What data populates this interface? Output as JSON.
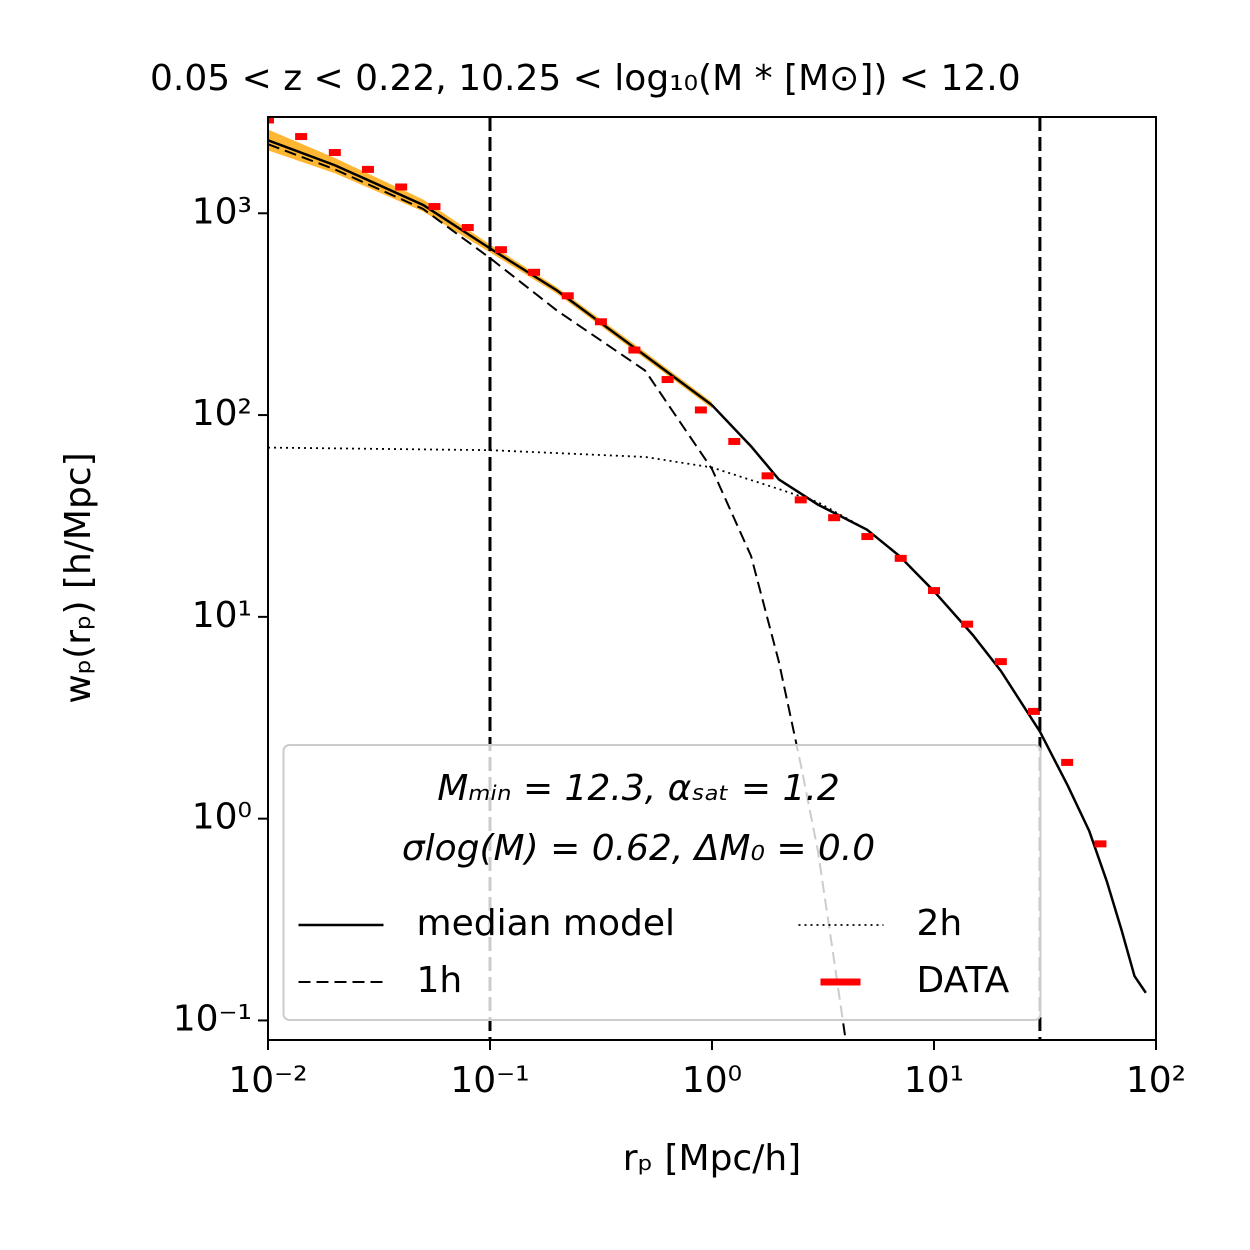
{
  "chart_data": {
    "type": "line",
    "title": "0.05 < z < 0.22, 10.25 < log₁₀(M * [M⊙]) < 12.0",
    "x_label": "rₚ [Mpc/h]",
    "y_label": "wₚ(rₚ) [h/Mpc]",
    "xscale": "log",
    "yscale": "log",
    "xlim": [
      0.01,
      100
    ],
    "ylim": [
      0.08,
      3000
    ],
    "xticks": [
      {
        "value": 0.01,
        "label": "10⁻²"
      },
      {
        "value": 0.1,
        "label": "10⁻¹"
      },
      {
        "value": 1,
        "label": "10⁰"
      },
      {
        "value": 10,
        "label": "10¹"
      },
      {
        "value": 100,
        "label": "10²"
      }
    ],
    "yticks": [
      {
        "value": 0.1,
        "label": "10⁻¹"
      },
      {
        "value": 1,
        "label": "10⁰"
      },
      {
        "value": 10,
        "label": "10¹"
      },
      {
        "value": 100,
        "label": "10²"
      },
      {
        "value": 1000,
        "label": "10³"
      }
    ],
    "vlines": [
      0.1,
      30
    ],
    "legend": "lower center",
    "legend_title": [
      "Mₘᵢₙ = 12.3, αₛₐₜ = 1.2",
      "σlog(M) = 0.62, ΔM₀ = 0.0"
    ],
    "band": {
      "color": "#ffa500",
      "x": [
        0.01,
        0.02,
        0.05,
        0.1,
        0.2,
        0.5,
        1
      ],
      "lower": [
        2050,
        1580,
        1020,
        640,
        400,
        190,
        108
      ],
      "upper": [
        2600,
        1880,
        1170,
        700,
        430,
        205,
        116
      ]
    },
    "series": [
      {
        "name": "median model",
        "color": "#000000",
        "linestyle": "solid",
        "x": [
          0.01,
          0.02,
          0.05,
          0.1,
          0.2,
          0.5,
          1,
          1.5,
          2,
          3,
          5,
          7,
          10,
          15,
          20,
          30,
          40,
          50,
          60,
          70,
          80,
          90
        ],
        "values": [
          2300,
          1730,
          1100,
          670,
          415,
          197,
          112,
          70,
          48,
          36,
          27,
          20,
          13.4,
          8.1,
          5.4,
          2.7,
          1.46,
          0.87,
          0.49,
          0.28,
          0.166,
          0.137
        ]
      },
      {
        "name": "1h",
        "color": "#000000",
        "linestyle": "dashed",
        "x": [
          0.01,
          0.02,
          0.05,
          0.1,
          0.2,
          0.5,
          1,
          1.5,
          2,
          2.5,
          3,
          3.5,
          4
        ],
        "values": [
          2200,
          1650,
          1050,
          600,
          330,
          166,
          54,
          20,
          6,
          1.9,
          0.69,
          0.22,
          0.08
        ]
      },
      {
        "name": "2h",
        "color": "#000000",
        "linestyle": "dotted",
        "x": [
          0.01,
          0.1,
          0.5,
          1,
          2,
          3,
          5,
          7,
          10,
          15,
          20,
          30,
          40,
          50,
          60,
          70,
          80,
          90
        ],
        "values": [
          69,
          67,
          62,
          55,
          43,
          37,
          27,
          20,
          13.4,
          8.1,
          5.4,
          2.7,
          1.46,
          0.87,
          0.49,
          0.28,
          0.166,
          0.137
        ]
      },
      {
        "name": "DATA",
        "color": "#ff0000",
        "linestyle": "none",
        "x": [
          0.01,
          0.0141,
          0.02,
          0.0282,
          0.0398,
          0.0562,
          0.0794,
          0.112,
          0.158,
          0.224,
          0.316,
          0.447,
          0.631,
          0.891,
          1.26,
          1.78,
          2.51,
          3.55,
          5.01,
          7.08,
          10,
          14.1,
          20,
          28.2,
          39.8,
          56.2
        ],
        "values": [
          2900,
          2400,
          2000,
          1650,
          1350,
          1080,
          850,
          660,
          510,
          390,
          290,
          210,
          150,
          106,
          74,
          50,
          38,
          31,
          25,
          19.5,
          13.5,
          9.2,
          6.0,
          3.4,
          1.9,
          0.75
        ]
      }
    ]
  }
}
